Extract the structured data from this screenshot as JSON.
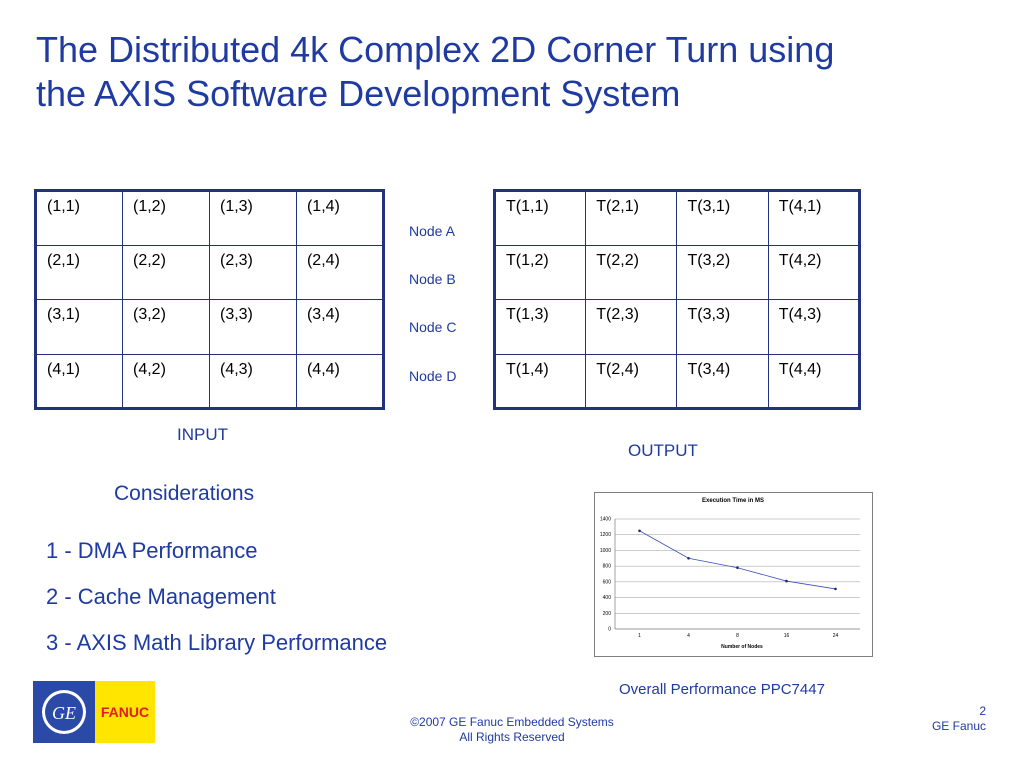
{
  "title": {
    "line1": "The Distributed 4k Complex 2D Corner Turn using",
    "line2": "the  AXIS Software Development System"
  },
  "input_table": {
    "rows": [
      [
        "(1,1)",
        "(1,2)",
        "(1,3)",
        "(1,4)"
      ],
      [
        "(2,1)",
        "(2,2)",
        "(2,3)",
        "(2,4)"
      ],
      [
        "(3,1)",
        "(3,2)",
        "(3,3)",
        "(3,4)"
      ],
      [
        "(4,1)",
        "(4,2)",
        "(4,3)",
        "(4,4)"
      ]
    ],
    "label": "INPUT"
  },
  "nodes": [
    "Node A",
    "Node B",
    "Node C",
    "Node D"
  ],
  "output_table": {
    "rows": [
      [
        "T(1,1)",
        "T(2,1)",
        "T(3,1)",
        "T(4,1)"
      ],
      [
        "T(1,2)",
        "T(2,2)",
        "T(3,2)",
        "T(4,2)"
      ],
      [
        "T(1,3)",
        "T(2,3)",
        "T(3,3)",
        "T(4,3)"
      ],
      [
        "T(1,4)",
        "T(2,4)",
        "T(3,4)",
        "T(4,4)"
      ]
    ],
    "label": "OUTPUT"
  },
  "considerations": {
    "title": "Considerations",
    "items": [
      "1 - DMA Performance",
      "2 - Cache Management",
      "3 - AXIS Math Library Performance"
    ]
  },
  "chart_data": {
    "type": "line",
    "title": "Execution Time in MS",
    "xlabel": "Number of  Nodes",
    "ylabel": "",
    "categories": [
      "1",
      "4",
      "8",
      "16",
      "24"
    ],
    "series": [
      {
        "values": [
          1250,
          900,
          780,
          610,
          510
        ]
      }
    ],
    "ylim": [
      0,
      1400
    ],
    "yticks": [
      0,
      200,
      400,
      600,
      800,
      1000,
      1200,
      1400
    ],
    "grid": true,
    "colors": {
      "line": "#3b4fb5",
      "grid": "#999999"
    }
  },
  "chart_caption": "Overall Performance PPC7447",
  "logo": {
    "text": "FANUC"
  },
  "footer": {
    "line1": "©2007 GE Fanuc Embedded Systems",
    "line2": "All Rights Reserved"
  },
  "page": {
    "number": "2",
    "brand": "GE Fanuc"
  }
}
